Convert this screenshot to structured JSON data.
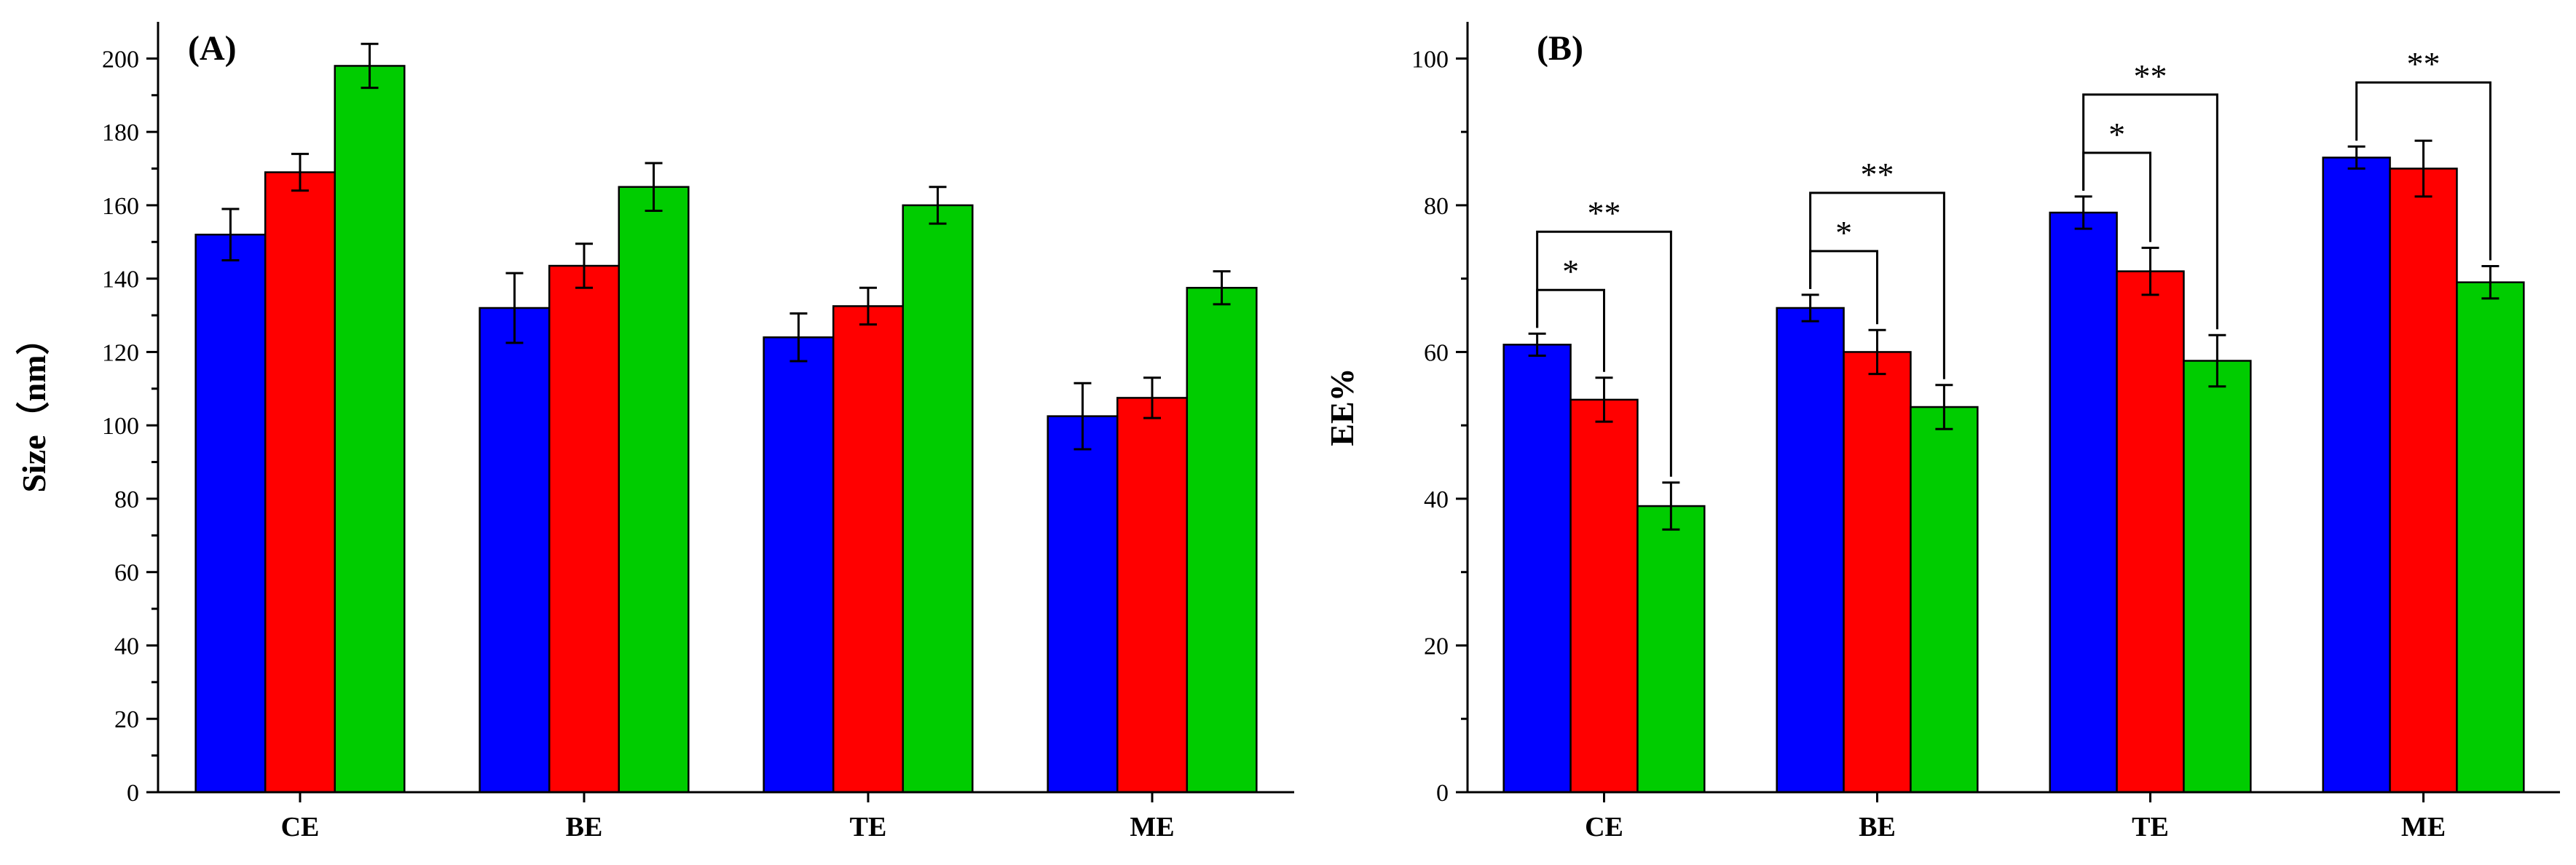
{
  "figure": {
    "colors": {
      "series": [
        "#0000ff",
        "#ff0000",
        "#00cc00"
      ],
      "axis": "#000000"
    }
  },
  "chart_data": [
    {
      "type": "bar",
      "panel_label": "(A)",
      "title": "",
      "xlabel": "",
      "ylabel": "Size（nm）",
      "ylim": [
        0,
        210
      ],
      "yticks": [
        0,
        20,
        40,
        60,
        80,
        100,
        120,
        140,
        160,
        180,
        200
      ],
      "ytick_labels": [
        "0",
        "20",
        "40",
        "60",
        "80",
        "100",
        "120",
        "140",
        "160",
        "180",
        "200"
      ],
      "categories": [
        "CE",
        "BE",
        "TE",
        "ME"
      ],
      "series": [
        {
          "name": "blue",
          "color": "#0000ff",
          "values": [
            152,
            132,
            124,
            102.5
          ],
          "errors": [
            7,
            9.5,
            6.5,
            9
          ]
        },
        {
          "name": "red",
          "color": "#ff0000",
          "values": [
            169,
            143.5,
            132.5,
            107.5
          ],
          "errors": [
            5,
            6,
            5,
            5.5
          ]
        },
        {
          "name": "green",
          "color": "#00cc00",
          "values": [
            198,
            165,
            160,
            137.5
          ],
          "errors": [
            6,
            6.5,
            5,
            4.5
          ]
        }
      ],
      "significance": []
    },
    {
      "type": "bar",
      "panel_label": "(B)",
      "title": "",
      "xlabel": "",
      "ylabel": "EE%",
      "ylim": [
        0,
        105
      ],
      "yticks": [
        0,
        20,
        40,
        60,
        80,
        100
      ],
      "ytick_labels": [
        "0",
        "20",
        "40",
        "60",
        "80",
        "100"
      ],
      "categories": [
        "CE",
        "BE",
        "TE",
        "ME"
      ],
      "series": [
        {
          "name": "blue",
          "color": "#0000ff",
          "values": [
            61,
            66,
            79,
            86.5
          ],
          "errors": [
            1.5,
            1.8,
            2.2,
            1.5
          ]
        },
        {
          "name": "red",
          "color": "#ff0000",
          "values": [
            53.5,
            60,
            71,
            85
          ],
          "errors": [
            3,
            3,
            3.2,
            3.8
          ]
        },
        {
          "name": "green",
          "color": "#00cc00",
          "values": [
            39,
            52.5,
            58.8,
            69.5
          ],
          "errors": [
            3.2,
            3,
            3.5,
            2.2
          ]
        }
      ],
      "significance": [
        {
          "category": 0,
          "from": 0,
          "to": 1,
          "label": "*",
          "level": 1
        },
        {
          "category": 0,
          "from": 0,
          "to": 2,
          "label": "**",
          "level": 2
        },
        {
          "category": 1,
          "from": 0,
          "to": 1,
          "label": "*",
          "level": 1
        },
        {
          "category": 1,
          "from": 0,
          "to": 2,
          "label": "**",
          "level": 2
        },
        {
          "category": 2,
          "from": 0,
          "to": 1,
          "label": "*",
          "level": 1
        },
        {
          "category": 2,
          "from": 0,
          "to": 2,
          "label": "**",
          "level": 2
        },
        {
          "category": 3,
          "from": 0,
          "to": 2,
          "label": "**",
          "level": 1
        }
      ]
    }
  ]
}
